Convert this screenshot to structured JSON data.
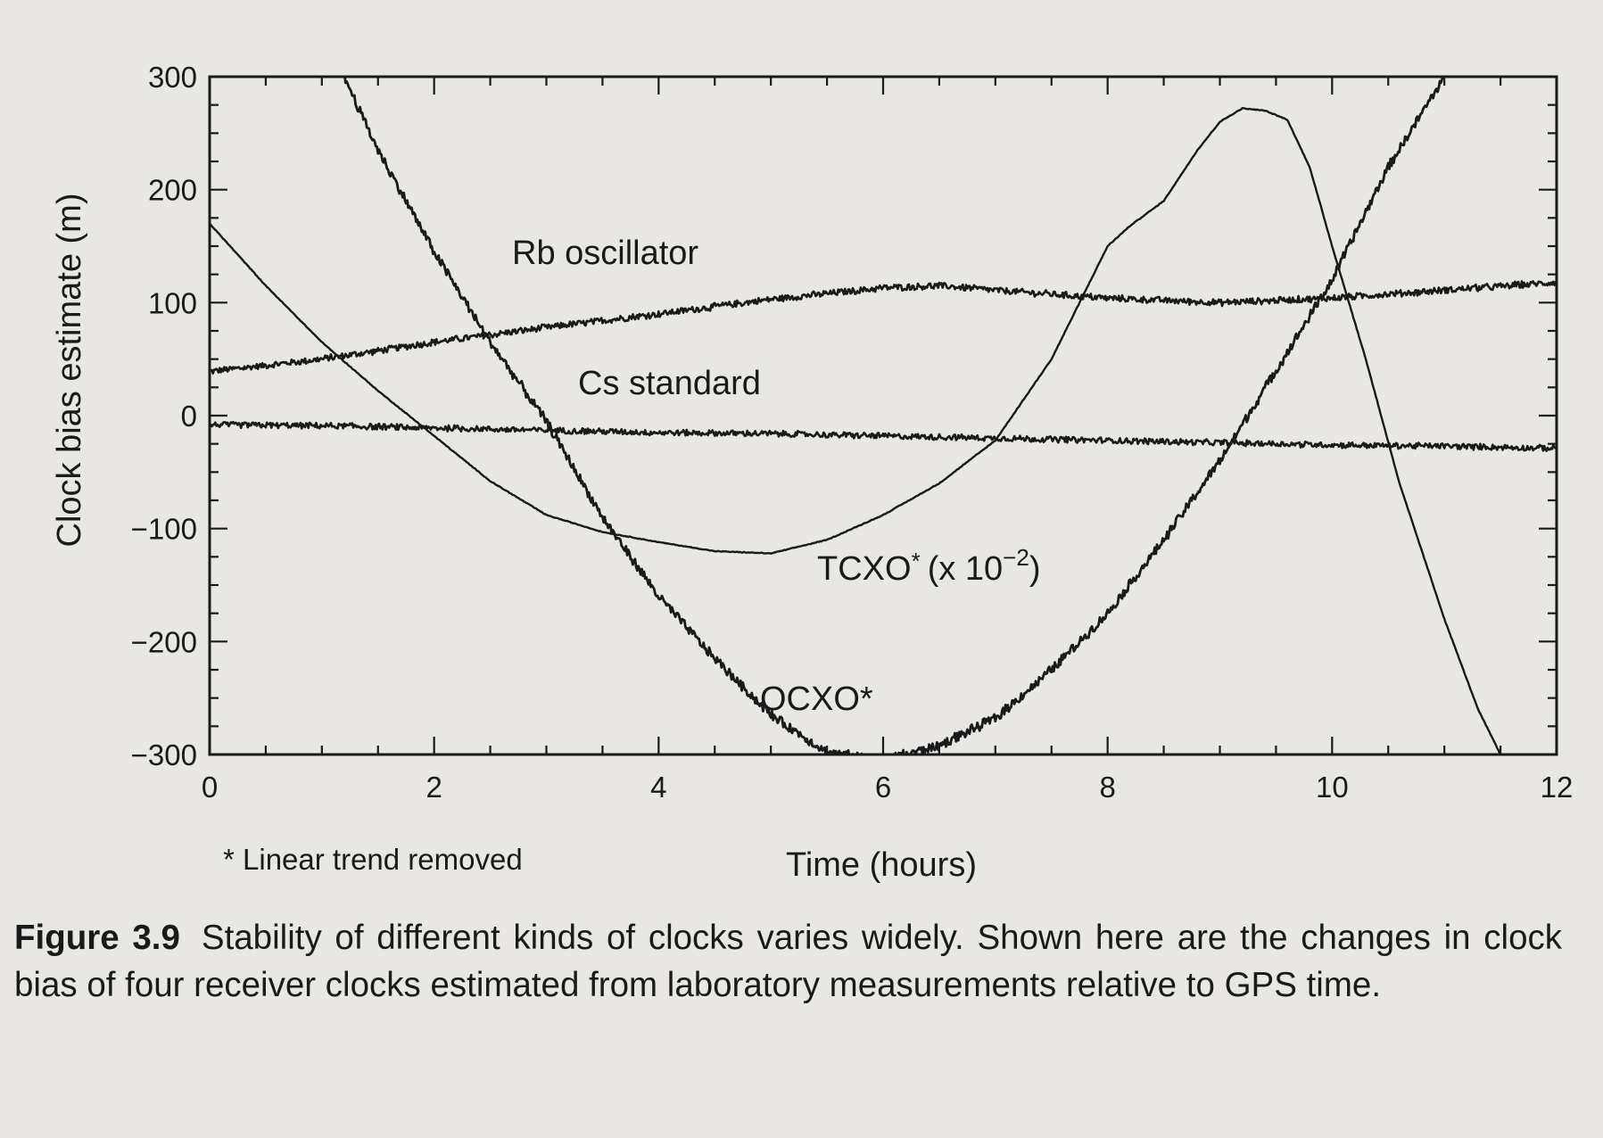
{
  "chart_data": {
    "type": "line",
    "xlabel": "Time (hours)",
    "ylabel": "Clock bias estimate (m)",
    "xlim": [
      0,
      12
    ],
    "ylim": [
      -300,
      300
    ],
    "x_ticks": [
      0,
      2,
      4,
      6,
      8,
      10,
      12
    ],
    "y_ticks": [
      300,
      200,
      100,
      0,
      -100,
      -200,
      -300
    ],
    "x_tick_labels": [
      "0",
      "2",
      "4",
      "6",
      "8",
      "10",
      "12"
    ],
    "y_tick_labels": [
      "300",
      "200",
      "100",
      "0",
      "−100",
      "−200",
      "−300"
    ],
    "grid": false,
    "series": [
      {
        "name": "Rb oscillator",
        "x": [
          0,
          1,
          2,
          3,
          4,
          5,
          6,
          6.5,
          7,
          8,
          9,
          10,
          11,
          12
        ],
        "y": [
          39,
          50,
          65,
          78,
          90,
          103,
          113,
          115,
          111,
          104,
          100,
          104,
          111,
          118
        ]
      },
      {
        "name": "Cs standard",
        "x": [
          0,
          1,
          2,
          3,
          4,
          5,
          6,
          7,
          8,
          9,
          10,
          11,
          12
        ],
        "y": [
          -8,
          -9,
          -11,
          -13,
          -15,
          -16,
          -18,
          -20,
          -22,
          -24,
          -26,
          -27,
          -29
        ]
      },
      {
        "name": "TCXO* (x 10−2)",
        "x": [
          0,
          0.5,
          1,
          1.5,
          2,
          2.5,
          3,
          3.5,
          4,
          4.5,
          5,
          5.5,
          6,
          6.5,
          7,
          7.5,
          8,
          8.2,
          8.5,
          8.8,
          9,
          9.2,
          9.4,
          9.6,
          9.8,
          10,
          10.3,
          10.6,
          11,
          11.3,
          11.6
        ],
        "y": [
          170,
          115,
          65,
          22,
          -18,
          -58,
          -88,
          -103,
          -112,
          -120,
          -122,
          -110,
          -88,
          -60,
          -22,
          50,
          150,
          168,
          190,
          235,
          260,
          272,
          270,
          262,
          220,
          150,
          50,
          -60,
          -180,
          -260,
          -320
        ]
      },
      {
        "name": "OCXO*",
        "x": [
          1.2,
          1.5,
          2,
          2.5,
          3,
          3.5,
          4,
          4.5,
          5,
          5.5,
          6,
          6.5,
          7,
          7.5,
          8,
          8.5,
          9,
          9.5,
          10,
          10.5,
          11,
          11.2
        ],
        "y": [
          300,
          235,
          145,
          65,
          -5,
          -90,
          -160,
          -215,
          -265,
          -298,
          -305,
          -292,
          -268,
          -225,
          -175,
          -110,
          -40,
          40,
          120,
          220,
          300,
          320
        ]
      }
    ],
    "annotations": [
      "* Linear trend removed"
    ],
    "legend": "none (series labeled inline)"
  },
  "labels": {
    "rb": "Rb oscillator",
    "cs": "Cs standard",
    "tcxo_main": "TCXO",
    "tcxo_star": "*",
    "tcxo_open": "(x 10",
    "tcxo_exp": "−2",
    "tcxo_close": ")",
    "ocxo": "OCXO*",
    "footnote": "* Linear trend removed"
  },
  "caption": {
    "figure_number": "Figure 3.9",
    "text": "Stability of different kinds of clocks varies widely. Shown here are the changes in clock bias of four receiver clocks estimated from laboratory measurements relative to GPS time."
  },
  "colors": {
    "ink": "#1a1a1a",
    "paper": "#e9e7e3"
  }
}
